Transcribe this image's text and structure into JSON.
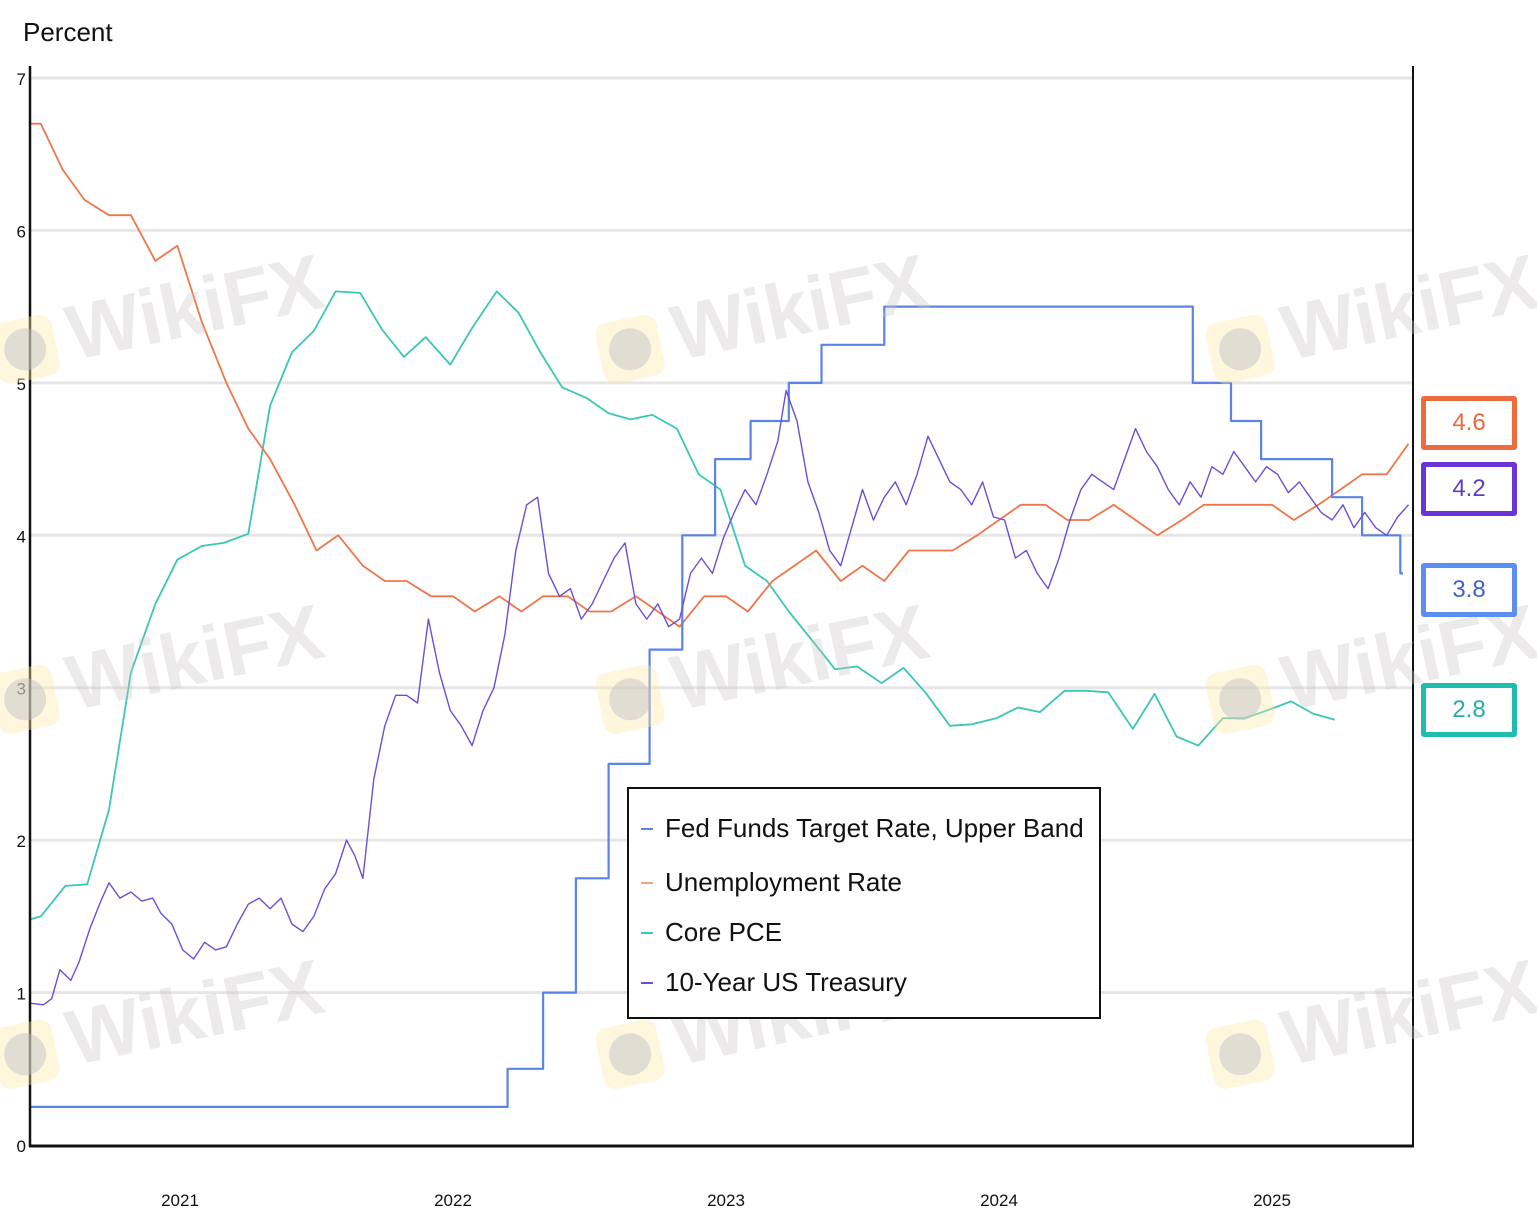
{
  "chart_data": {
    "type": "line",
    "title": "",
    "ylabel": "Percent",
    "xlabel": "",
    "ylim": [
      0,
      7
    ],
    "yticks": [
      "0",
      "1",
      "2",
      "3",
      "4",
      "5",
      "6",
      "7"
    ],
    "xticks": [
      "2021",
      "2022",
      "2023",
      "2024",
      "2025"
    ],
    "xrange": [
      2020.45,
      2025.52
    ],
    "grid": true,
    "legend_position": "lower-center",
    "series": [
      {
        "name": "Fed Funds Target Rate, Upper Band",
        "color": "#5b84e6",
        "step": true,
        "points": [
          [
            2020.45,
            0.25
          ],
          [
            2022.2,
            0.25
          ],
          [
            2022.2,
            0.5
          ],
          [
            2022.33,
            0.5
          ],
          [
            2022.33,
            1.0
          ],
          [
            2022.45,
            1.0
          ],
          [
            2022.45,
            1.75
          ],
          [
            2022.57,
            1.75
          ],
          [
            2022.57,
            2.5
          ],
          [
            2022.72,
            2.5
          ],
          [
            2022.72,
            3.25
          ],
          [
            2022.84,
            3.25
          ],
          [
            2022.84,
            4.0
          ],
          [
            2022.96,
            4.0
          ],
          [
            2022.96,
            4.5
          ],
          [
            2023.09,
            4.5
          ],
          [
            2023.09,
            4.75
          ],
          [
            2023.23,
            4.75
          ],
          [
            2023.23,
            5.0
          ],
          [
            2023.35,
            5.0
          ],
          [
            2023.35,
            5.25
          ],
          [
            2023.58,
            5.25
          ],
          [
            2023.58,
            5.5
          ],
          [
            2024.71,
            5.5
          ],
          [
            2024.71,
            5.0
          ],
          [
            2024.85,
            5.0
          ],
          [
            2024.85,
            4.75
          ],
          [
            2024.96,
            4.75
          ],
          [
            2024.96,
            4.5
          ],
          [
            2025.22,
            4.5
          ],
          [
            2025.22,
            4.25
          ],
          [
            2025.33,
            4.25
          ],
          [
            2025.33,
            4.0
          ],
          [
            2025.47,
            4.0
          ],
          [
            2025.47,
            3.75
          ],
          [
            2025.48,
            3.75
          ]
        ],
        "last_value": "3.8"
      },
      {
        "name": "Unemployment Rate",
        "color": "#f0764a",
        "step": false,
        "points": [
          [
            2020.45,
            6.7
          ],
          [
            2020.49,
            6.7
          ],
          [
            2020.57,
            6.4
          ],
          [
            2020.65,
            6.2
          ],
          [
            2020.74,
            6.1
          ],
          [
            2020.82,
            6.1
          ],
          [
            2020.91,
            5.8
          ],
          [
            2020.99,
            5.9
          ],
          [
            2021.08,
            5.4
          ],
          [
            2021.17,
            5.0
          ],
          [
            2021.25,
            4.7
          ],
          [
            2021.33,
            4.5
          ],
          [
            2021.42,
            4.2
          ],
          [
            2021.5,
            3.9
          ],
          [
            2021.58,
            4.0
          ],
          [
            2021.67,
            3.8
          ],
          [
            2021.75,
            3.7
          ],
          [
            2021.83,
            3.7
          ],
          [
            2021.92,
            3.6
          ],
          [
            2022.0,
            3.6
          ],
          [
            2022.08,
            3.5
          ],
          [
            2022.17,
            3.6
          ],
          [
            2022.25,
            3.5
          ],
          [
            2022.33,
            3.6
          ],
          [
            2022.42,
            3.6
          ],
          [
            2022.5,
            3.5
          ],
          [
            2022.58,
            3.5
          ],
          [
            2022.67,
            3.6
          ],
          [
            2022.75,
            3.5
          ],
          [
            2022.83,
            3.4
          ],
          [
            2022.92,
            3.6
          ],
          [
            2023.0,
            3.6
          ],
          [
            2023.08,
            3.5
          ],
          [
            2023.17,
            3.7
          ],
          [
            2023.25,
            3.8
          ],
          [
            2023.33,
            3.9
          ],
          [
            2023.42,
            3.7
          ],
          [
            2023.5,
            3.8
          ],
          [
            2023.58,
            3.7
          ],
          [
            2023.67,
            3.9
          ],
          [
            2023.75,
            3.9
          ],
          [
            2023.83,
            3.9
          ],
          [
            2023.92,
            4.0
          ],
          [
            2024.0,
            4.1
          ],
          [
            2024.08,
            4.2
          ],
          [
            2024.17,
            4.2
          ],
          [
            2024.25,
            4.1
          ],
          [
            2024.33,
            4.1
          ],
          [
            2024.42,
            4.2
          ],
          [
            2024.5,
            4.1
          ],
          [
            2024.58,
            4.0
          ],
          [
            2024.67,
            4.1
          ],
          [
            2024.75,
            4.2
          ],
          [
            2024.83,
            4.2
          ],
          [
            2024.92,
            4.2
          ],
          [
            2025.0,
            4.2
          ],
          [
            2025.08,
            4.1
          ],
          [
            2025.17,
            4.2
          ],
          [
            2025.25,
            4.3
          ],
          [
            2025.33,
            4.4
          ],
          [
            2025.42,
            4.4
          ],
          [
            2025.5,
            4.6
          ]
        ],
        "last_value": "4.6"
      },
      {
        "name": "Core PCE",
        "color": "#3cc6b4",
        "step": false,
        "points": [
          [
            2020.45,
            1.48
          ],
          [
            2020.49,
            1.5
          ],
          [
            2020.58,
            1.7
          ],
          [
            2020.66,
            1.71
          ],
          [
            2020.74,
            2.2
          ],
          [
            2020.82,
            3.1
          ],
          [
            2020.91,
            3.55
          ],
          [
            2020.99,
            3.84
          ],
          [
            2021.08,
            3.93
          ],
          [
            2021.16,
            3.95
          ],
          [
            2021.25,
            4.01
          ],
          [
            2021.33,
            4.85
          ],
          [
            2021.41,
            5.2
          ],
          [
            2021.49,
            5.34
          ],
          [
            2021.57,
            5.6
          ],
          [
            2021.66,
            5.59
          ],
          [
            2021.74,
            5.35
          ],
          [
            2021.82,
            5.17
          ],
          [
            2021.9,
            5.3
          ],
          [
            2021.99,
            5.12
          ],
          [
            2022.07,
            5.36
          ],
          [
            2022.16,
            5.6
          ],
          [
            2022.24,
            5.46
          ],
          [
            2022.32,
            5.2
          ],
          [
            2022.4,
            4.97
          ],
          [
            2022.49,
            4.9
          ],
          [
            2022.57,
            4.8
          ],
          [
            2022.65,
            4.76
          ],
          [
            2022.73,
            4.79
          ],
          [
            2022.82,
            4.7
          ],
          [
            2022.9,
            4.4
          ],
          [
            2022.98,
            4.3
          ],
          [
            2023.07,
            3.8
          ],
          [
            2023.15,
            3.7
          ],
          [
            2023.23,
            3.5
          ],
          [
            2023.32,
            3.3
          ],
          [
            2023.4,
            3.12
          ],
          [
            2023.48,
            3.14
          ],
          [
            2023.57,
            3.03
          ],
          [
            2023.65,
            3.13
          ],
          [
            2023.73,
            2.97
          ],
          [
            2023.82,
            2.75
          ],
          [
            2023.9,
            2.76
          ],
          [
            2023.99,
            2.8
          ],
          [
            2024.07,
            2.87
          ],
          [
            2024.15,
            2.84
          ],
          [
            2024.24,
            2.98
          ],
          [
            2024.32,
            2.98
          ],
          [
            2024.4,
            2.97
          ],
          [
            2024.49,
            2.73
          ],
          [
            2024.57,
            2.96
          ],
          [
            2024.65,
            2.68
          ],
          [
            2024.73,
            2.62
          ],
          [
            2024.82,
            2.8
          ],
          [
            2024.9,
            2.8
          ],
          [
            2024.98,
            2.85
          ],
          [
            2025.07,
            2.91
          ],
          [
            2025.15,
            2.83
          ],
          [
            2025.23,
            2.79
          ]
        ],
        "last_value": "2.8"
      },
      {
        "name": "10-Year US Treasury",
        "color": "#6a4fd8",
        "step": false,
        "points": [
          [
            2020.45,
            0.93
          ],
          [
            2020.5,
            0.92
          ],
          [
            2020.53,
            0.96
          ],
          [
            2020.56,
            1.15
          ],
          [
            2020.6,
            1.08
          ],
          [
            2020.63,
            1.2
          ],
          [
            2020.67,
            1.42
          ],
          [
            2020.71,
            1.6
          ],
          [
            2020.74,
            1.72
          ],
          [
            2020.78,
            1.62
          ],
          [
            2020.82,
            1.66
          ],
          [
            2020.86,
            1.6
          ],
          [
            2020.9,
            1.62
          ],
          [
            2020.93,
            1.52
          ],
          [
            2020.97,
            1.45
          ],
          [
            2021.01,
            1.28
          ],
          [
            2021.05,
            1.22
          ],
          [
            2021.09,
            1.33
          ],
          [
            2021.13,
            1.28
          ],
          [
            2021.17,
            1.3
          ],
          [
            2021.21,
            1.45
          ],
          [
            2021.25,
            1.58
          ],
          [
            2021.29,
            1.62
          ],
          [
            2021.33,
            1.55
          ],
          [
            2021.37,
            1.62
          ],
          [
            2021.41,
            1.45
          ],
          [
            2021.45,
            1.4
          ],
          [
            2021.49,
            1.5
          ],
          [
            2021.53,
            1.68
          ],
          [
            2021.57,
            1.78
          ],
          [
            2021.61,
            2.0
          ],
          [
            2021.64,
            1.9
          ],
          [
            2021.67,
            1.75
          ],
          [
            2021.71,
            2.4
          ],
          [
            2021.75,
            2.75
          ],
          [
            2021.79,
            2.95
          ],
          [
            2021.83,
            2.95
          ],
          [
            2021.87,
            2.9
          ],
          [
            2021.91,
            3.45
          ],
          [
            2021.95,
            3.1
          ],
          [
            2021.99,
            2.85
          ],
          [
            2022.03,
            2.75
          ],
          [
            2022.07,
            2.62
          ],
          [
            2022.11,
            2.85
          ],
          [
            2022.15,
            3.0
          ],
          [
            2022.19,
            3.35
          ],
          [
            2022.23,
            3.9
          ],
          [
            2022.27,
            4.2
          ],
          [
            2022.31,
            4.25
          ],
          [
            2022.35,
            3.75
          ],
          [
            2022.39,
            3.6
          ],
          [
            2022.43,
            3.65
          ],
          [
            2022.47,
            3.45
          ],
          [
            2022.51,
            3.55
          ],
          [
            2022.55,
            3.7
          ],
          [
            2022.59,
            3.85
          ],
          [
            2022.63,
            3.95
          ],
          [
            2022.67,
            3.55
          ],
          [
            2022.71,
            3.45
          ],
          [
            2022.75,
            3.55
          ],
          [
            2022.79,
            3.4
          ],
          [
            2022.83,
            3.45
          ],
          [
            2022.87,
            3.75
          ],
          [
            2022.91,
            3.85
          ],
          [
            2022.95,
            3.75
          ],
          [
            2022.99,
            3.98
          ],
          [
            2023.03,
            4.15
          ],
          [
            2023.07,
            4.3
          ],
          [
            2023.11,
            4.2
          ],
          [
            2023.15,
            4.4
          ],
          [
            2023.19,
            4.62
          ],
          [
            2023.22,
            4.95
          ],
          [
            2023.26,
            4.75
          ],
          [
            2023.3,
            4.35
          ],
          [
            2023.34,
            4.15
          ],
          [
            2023.38,
            3.9
          ],
          [
            2023.42,
            3.8
          ],
          [
            2023.46,
            4.05
          ],
          [
            2023.5,
            4.3
          ],
          [
            2023.54,
            4.1
          ],
          [
            2023.58,
            4.25
          ],
          [
            2023.62,
            4.35
          ],
          [
            2023.66,
            4.2
          ],
          [
            2023.7,
            4.4
          ],
          [
            2023.74,
            4.65
          ],
          [
            2023.78,
            4.5
          ],
          [
            2023.82,
            4.35
          ],
          [
            2023.86,
            4.3
          ],
          [
            2023.9,
            4.2
          ],
          [
            2023.94,
            4.35
          ],
          [
            2023.98,
            4.12
          ],
          [
            2024.02,
            4.1
          ],
          [
            2024.06,
            3.85
          ],
          [
            2024.1,
            3.9
          ],
          [
            2024.14,
            3.75
          ],
          [
            2024.18,
            3.65
          ],
          [
            2024.22,
            3.85
          ],
          [
            2024.26,
            4.1
          ],
          [
            2024.3,
            4.3
          ],
          [
            2024.34,
            4.4
          ],
          [
            2024.38,
            4.35
          ],
          [
            2024.42,
            4.3
          ],
          [
            2024.46,
            4.5
          ],
          [
            2024.5,
            4.7
          ],
          [
            2024.54,
            4.55
          ],
          [
            2024.58,
            4.45
          ],
          [
            2024.62,
            4.3
          ],
          [
            2024.66,
            4.2
          ],
          [
            2024.7,
            4.35
          ],
          [
            2024.74,
            4.25
          ],
          [
            2024.78,
            4.45
          ],
          [
            2024.82,
            4.4
          ],
          [
            2024.86,
            4.55
          ],
          [
            2024.9,
            4.45
          ],
          [
            2024.94,
            4.35
          ],
          [
            2024.98,
            4.45
          ],
          [
            2025.02,
            4.4
          ],
          [
            2025.06,
            4.28
          ],
          [
            2025.1,
            4.35
          ],
          [
            2025.14,
            4.25
          ],
          [
            2025.18,
            4.15
          ],
          [
            2025.22,
            4.1
          ],
          [
            2025.26,
            4.2
          ],
          [
            2025.3,
            4.05
          ],
          [
            2025.34,
            4.15
          ],
          [
            2025.38,
            4.05
          ],
          [
            2025.42,
            4.0
          ],
          [
            2025.46,
            4.12
          ],
          [
            2025.5,
            4.2
          ]
        ],
        "last_value": "4.2"
      }
    ]
  },
  "legend": {
    "items": [
      {
        "label": "Fed Funds Target Rate, Upper Band",
        "color": "#5b84e6"
      },
      {
        "label": "Unemployment Rate",
        "color": "#f0764a"
      },
      {
        "label": "Core PCE",
        "color": "#3cc6b4"
      },
      {
        "label": "10-Year US Treasury",
        "color": "#6a4fd8"
      }
    ]
  },
  "value_boxes": [
    {
      "value": "4.6",
      "series": "Unemployment Rate",
      "border": "#ee6b3e",
      "text": "#e86b3f"
    },
    {
      "value": "4.2",
      "series": "10-Year US Treasury",
      "border": "#6a34d8",
      "text": "#5f3dc8"
    },
    {
      "value": "3.8",
      "series": "Fed Funds Target Rate, Upper Band",
      "border": "#5b8ef0",
      "text": "#3e63c8"
    },
    {
      "value": "2.8",
      "series": "Core PCE",
      "border": "#1fbcb0",
      "text": "#22aea4"
    }
  ],
  "watermark": {
    "text": "WikiFX"
  }
}
